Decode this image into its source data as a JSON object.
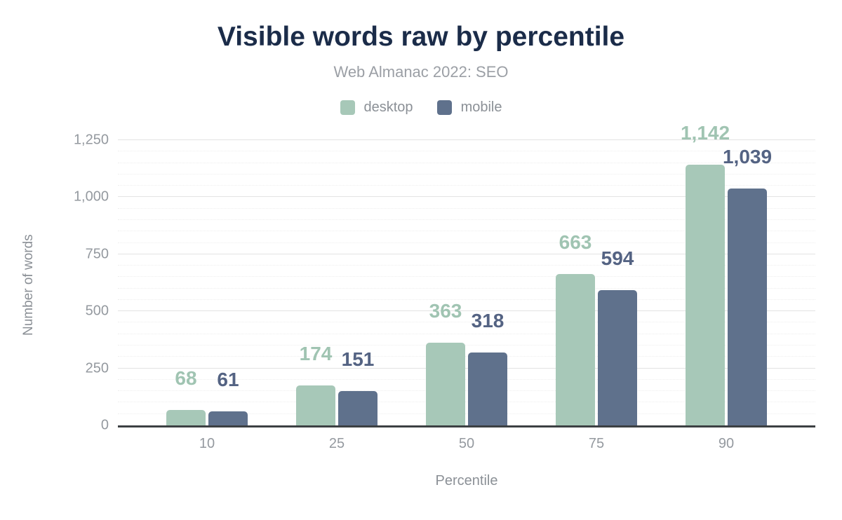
{
  "header": {
    "title": "Visible words raw by percentile",
    "subtitle": "Web Almanac 2022: SEO"
  },
  "colors": {
    "title": "#1b2c49",
    "desktop": "#a7c8b8",
    "mobile": "#5f718c",
    "desktop_label": "#a0c4b2",
    "mobile_label": "#546383",
    "axis_line": "#3c4043"
  },
  "chart_data": {
    "type": "bar",
    "title": "Visible words raw by percentile",
    "subtitle": "Web Almanac 2022: SEO",
    "xlabel": "Percentile",
    "ylabel": "Number of words",
    "categories": [
      "10",
      "25",
      "50",
      "75",
      "90"
    ],
    "series": [
      {
        "name": "desktop",
        "color": "#a7c8b8",
        "label_color": "#a0c4b2",
        "values": [
          68,
          174,
          363,
          663,
          1142
        ],
        "labels": [
          "68",
          "174",
          "363",
          "663",
          "1,142"
        ]
      },
      {
        "name": "mobile",
        "color": "#5f718c",
        "label_color": "#546383",
        "values": [
          61,
          151,
          318,
          594,
          1039
        ],
        "labels": [
          "61",
          "151",
          "318",
          "594",
          "1,039"
        ]
      }
    ],
    "ylim": [
      0,
      1250
    ],
    "ytick_step": 250,
    "yminor_step": 50,
    "yticks": [
      "0",
      "250",
      "500",
      "750",
      "1,000",
      "1,250"
    ],
    "grid": true,
    "legend_position": "top"
  }
}
